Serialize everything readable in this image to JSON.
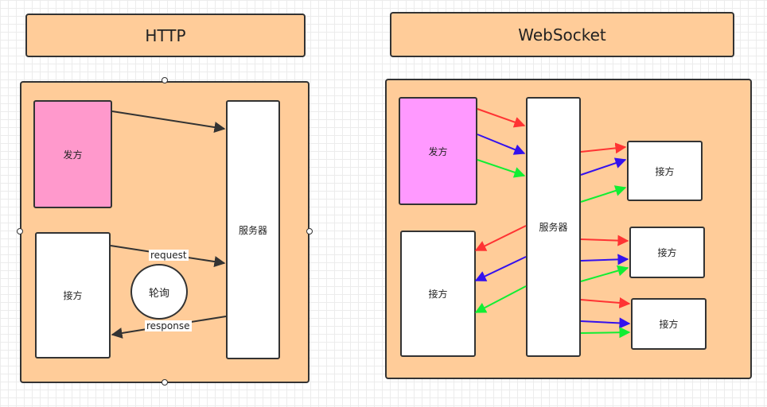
{
  "http": {
    "title": "HTTP",
    "sender": "发方",
    "receiver": "接方",
    "server": "服务器",
    "polling": "轮询",
    "request": "request",
    "response": "response"
  },
  "websocket": {
    "title": "WebSocket",
    "sender": "发方",
    "receiver_left": "接方",
    "server": "服务器",
    "receivers": [
      "接方",
      "接方",
      "接方"
    ]
  },
  "colors": {
    "container": "#ffcc99",
    "http_sender": "#ff99cc",
    "ws_sender": "#ff99ff",
    "arrow_red": "#ff3333",
    "arrow_blue": "#3311ee",
    "arrow_green": "#11ee33",
    "arrow_dark": "#333333"
  }
}
